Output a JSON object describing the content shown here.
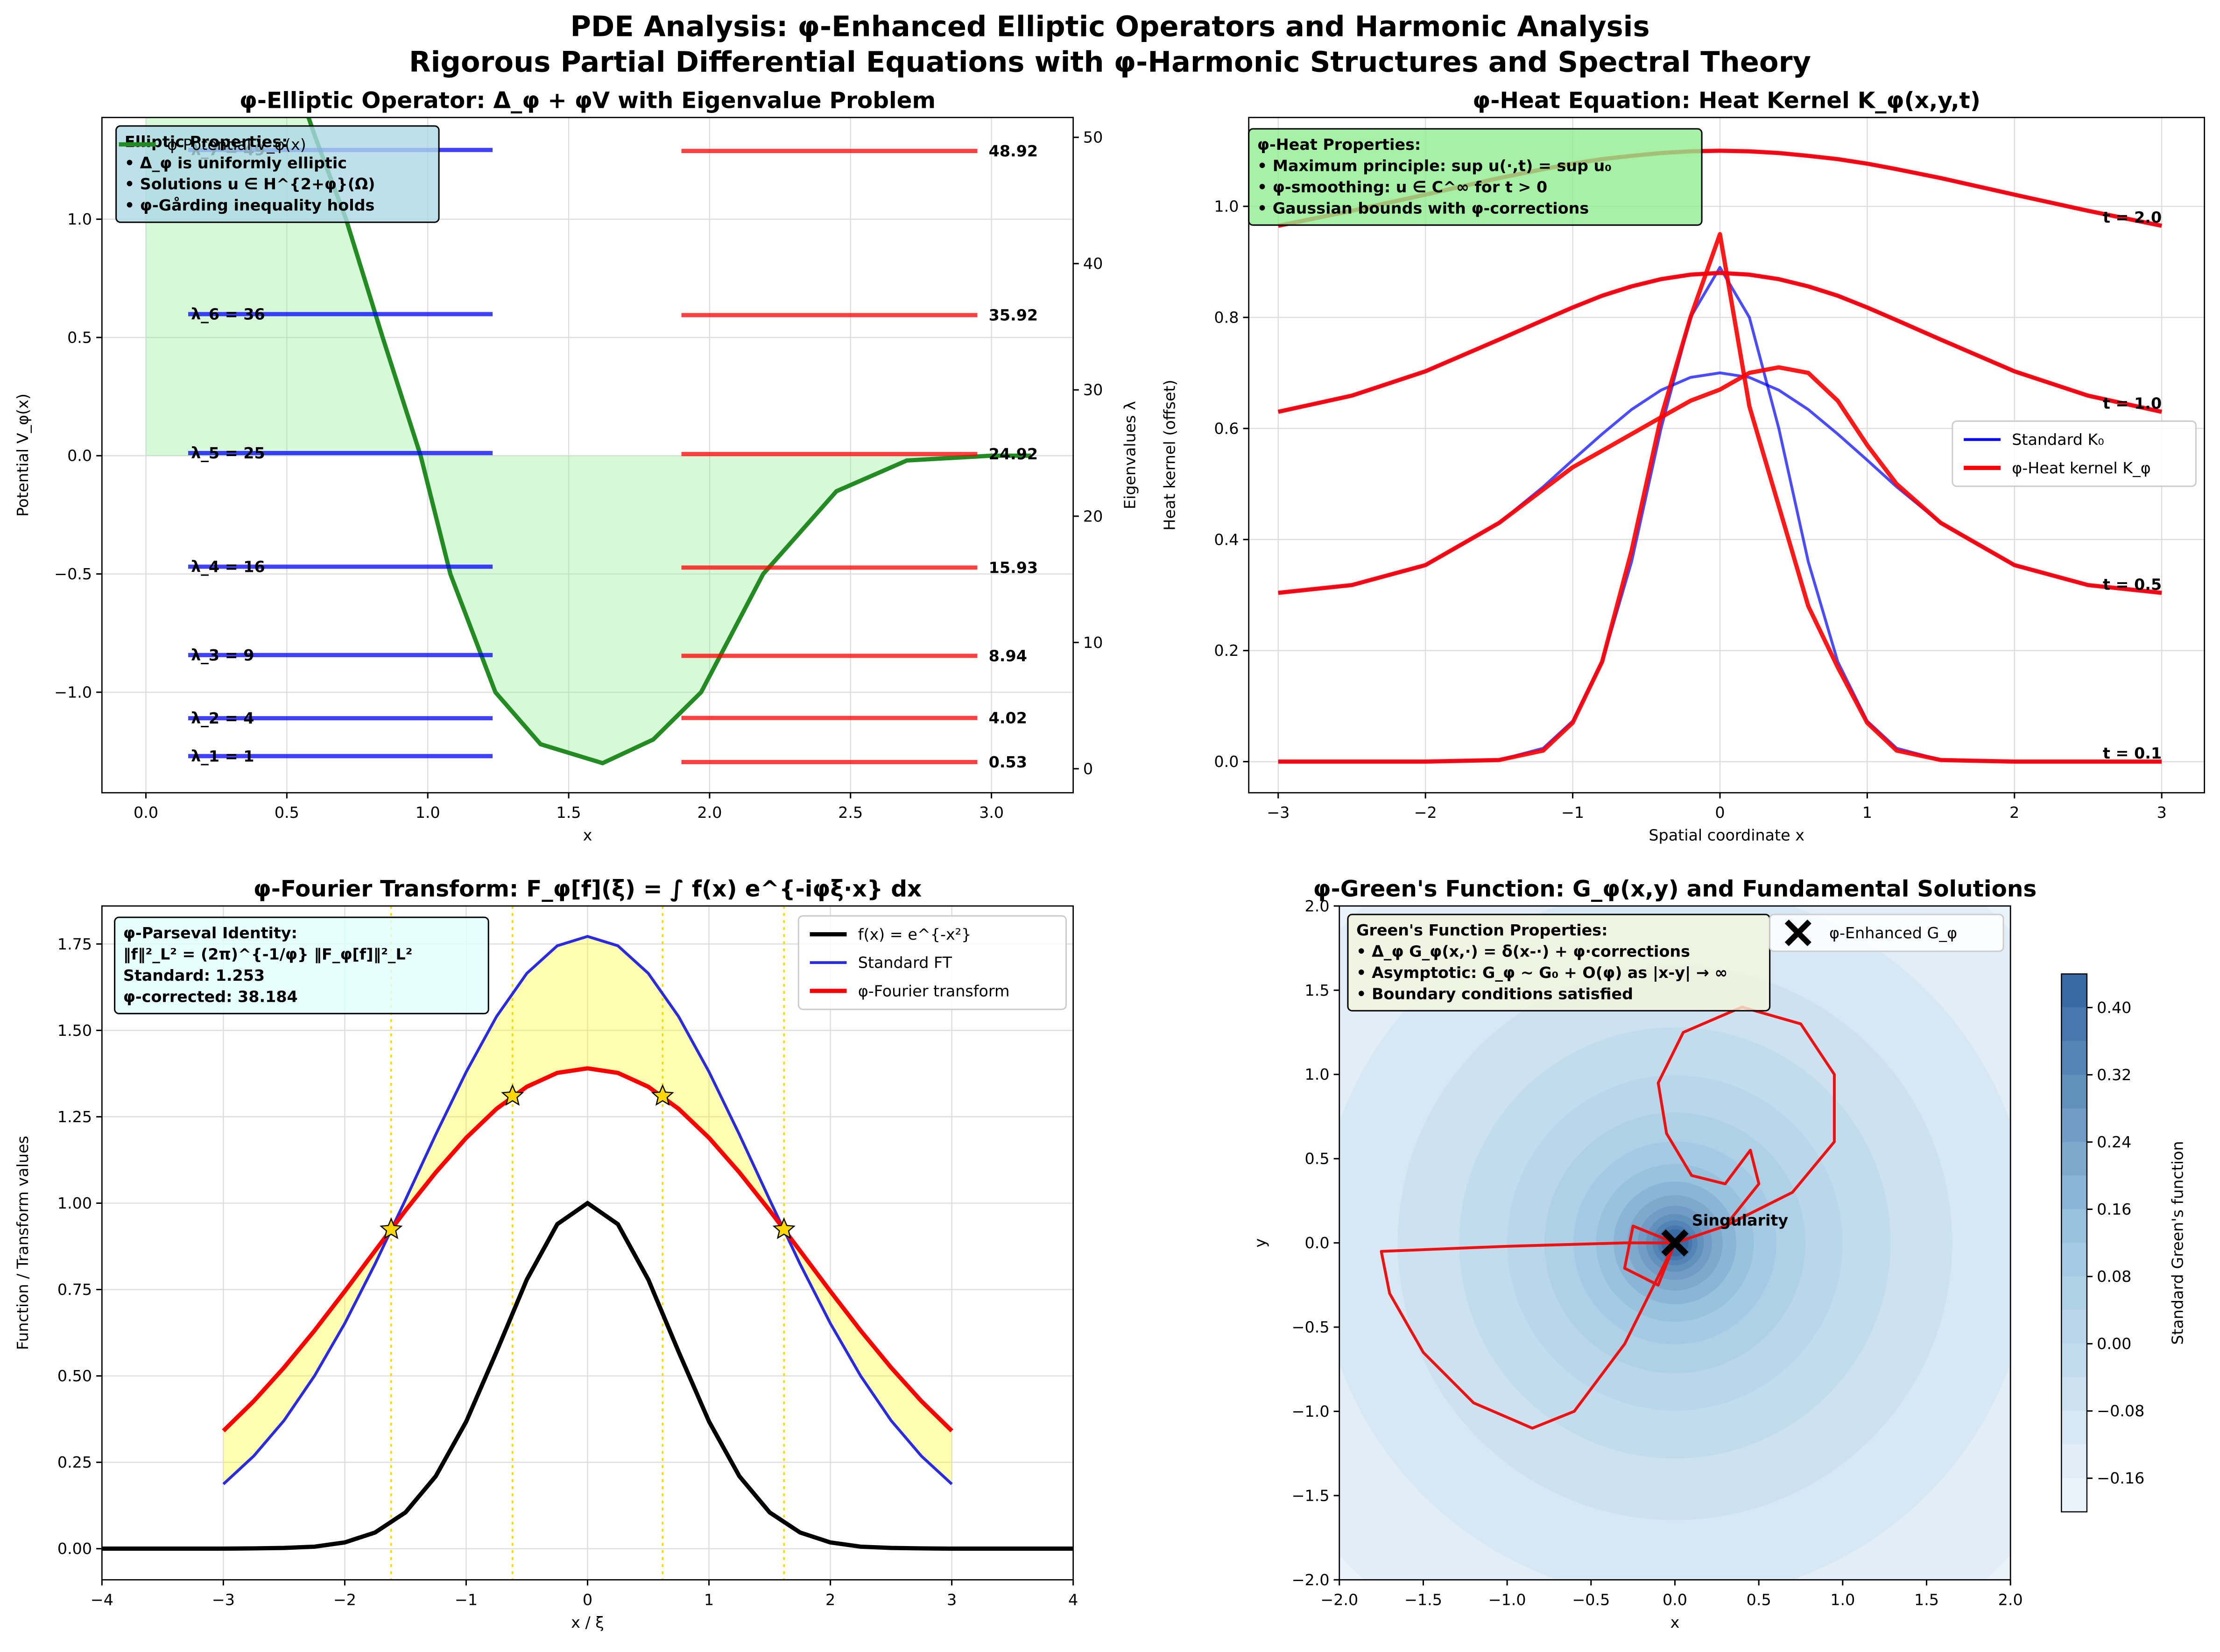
{
  "title": "PDE Analysis: φ-Enhanced Elliptic Operators and Harmonic Analysis",
  "subtitle": "Rigorous Partial Differential Equations with φ-Harmonic Structures and Spectral Theory",
  "chart_data": [
    {
      "type": "line",
      "title": "φ-Elliptic Operator: Δ_φ + φV with Eigenvalue Problem",
      "xlabel": "x",
      "ylabel": "Potential V_φ(x)",
      "y2label": "Eigenvalues λ",
      "xlim": [
        -0.156,
        3.29
      ],
      "xticks": [
        {
          "value": 0,
          "label": "0.0"
        },
        0.5,
        {
          "value": 1,
          "label": "1.0"
        },
        1.5,
        {
          "value": 2,
          "label": "2.0"
        },
        2.5,
        {
          "value": 3,
          "label": "3.0"
        }
      ],
      "ylim": [
        -1.425,
        1.43
      ],
      "yticks": [
        {
          "value": -1,
          "label": "−1.0"
        },
        {
          "value": -0.5,
          "label": "−0.5"
        },
        {
          "value": 0,
          "label": "0.0"
        },
        0.5,
        {
          "value": 1,
          "label": "1.0"
        }
      ],
      "y2lim": [
        -1.9,
        51.57
      ],
      "y2ticks": [
        0,
        10,
        20,
        30,
        40,
        50
      ],
      "grid": true,
      "x": [
        0,
        0.25,
        0.5,
        0.6,
        0.71,
        0.84,
        0.975,
        1.08,
        1.24,
        1.4,
        1.62,
        1.8,
        1.97,
        2.19,
        2.45,
        2.7,
        3.0,
        3.14
      ],
      "series": [
        {
          "name": "φ-Potential V_φ(x)",
          "color": "#228b22",
          "fill": "#90ee90",
          "values": [
            3.0,
            2.5,
            1.7,
            1.35,
            1.0,
            0.5,
            0,
            -0.5,
            -1.0,
            -1.22,
            -1.3,
            -1.2,
            -1.0,
            -0.5,
            -0.15,
            -0.02,
            0,
            0
          ]
        }
      ],
      "eigen_standard": {
        "color": "#0000ff",
        "xspan": [
          0.15,
          1.23
        ],
        "axis": "y2",
        "values": [
          1,
          4,
          9,
          16,
          25,
          36,
          49
        ],
        "labels": [
          "λ_1 = 1",
          "λ_2 = 4",
          "λ_3 = 9",
          "λ_4 = 16",
          "λ_5 = 25",
          "λ_6 = 36",
          "λ_7 = 49"
        ]
      },
      "eigen_phi": {
        "color": "#ff0000",
        "xspan": [
          1.9,
          2.95
        ],
        "axis": "y2",
        "values": [
          0.53,
          4.02,
          8.94,
          15.93,
          24.92,
          35.92,
          48.92
        ]
      },
      "legend_loc": "upper left",
      "annotation": {
        "color": "#add8e6",
        "lines": [
          "Elliptic Properties:",
          "• Δ_φ is uniformly elliptic",
          "• Solutions u ∈ H^{2+φ}(Ω)",
          "• φ-Gårding inequality holds"
        ]
      }
    },
    {
      "type": "heat",
      "title": "φ-Heat Equation: Heat Kernel K_φ(x,y,t)",
      "xlabel": "Spatial coordinate x",
      "ylabel": "Heat kernel (offset)",
      "xlim": [
        -3.2,
        3.29
      ],
      "xticks": [
        {
          "value": -3,
          "label": "−3"
        },
        {
          "value": -2,
          "label": "−2"
        },
        {
          "value": -1,
          "label": "−1"
        },
        0,
        1,
        2,
        3
      ],
      "ylim": [
        -0.056,
        1.16
      ],
      "yticks": [
        {
          "value": 0,
          "label": "0.0"
        },
        0.2,
        0.4,
        0.6,
        0.8,
        {
          "value": 1,
          "label": "1.0"
        }
      ],
      "grid": true,
      "x": [
        -3,
        -2.5,
        -2,
        -1.5,
        -1.2,
        -1,
        -0.8,
        -0.6,
        -0.4,
        -0.2,
        0,
        0.2,
        0.4,
        0.6,
        0.8,
        1,
        1.2,
        1.5,
        2,
        2.5,
        3
      ],
      "time_labels": [
        "t = 0.1",
        "t = 0.5",
        "t = 1.0",
        "t = 2.0"
      ],
      "series": [
        {
          "name": "Standard K₀",
          "color": "#0000ff",
          "curves": [
            [
              0,
              0,
              0,
              0.003,
              0.024,
              0.073,
              0.18,
              0.36,
              0.6,
              0.8,
              0.89,
              0.8,
              0.6,
              0.36,
              0.18,
              0.073,
              0.024,
              0.003,
              0,
              0,
              0
            ],
            [
              0.304,
              0.318,
              0.354,
              0.43,
              0.495,
              0.543,
              0.59,
              0.634,
              0.669,
              0.692,
              0.7,
              0.692,
              0.669,
              0.634,
              0.59,
              0.543,
              0.495,
              0.43,
              0.354,
              0.318,
              0.304
            ],
            [
              0.63,
              0.659,
              0.703,
              0.76,
              0.795,
              0.818,
              0.839,
              0.856,
              0.869,
              0.877,
              0.88,
              0.877,
              0.869,
              0.856,
              0.839,
              0.818,
              0.795,
              0.76,
              0.703,
              0.659,
              0.63
            ],
            [
              0.965,
              0.992,
              1.021,
              1.051,
              1.067,
              1.077,
              1.085,
              1.091,
              1.096,
              1.099,
              1.1,
              1.099,
              1.096,
              1.091,
              1.085,
              1.077,
              1.067,
              1.051,
              1.021,
              0.992,
              0.965
            ]
          ]
        },
        {
          "name": "φ-Heat kernel K_φ",
          "color": "#ff0000",
          "curves": [
            [
              0,
              0,
              0,
              0.003,
              0.02,
              0.07,
              0.18,
              0.38,
              0.62,
              0.8,
              0.95,
              0.64,
              0.46,
              0.28,
              0.17,
              0.07,
              0.02,
              0.003,
              0,
              0,
              0
            ],
            [
              0.304,
              0.318,
              0.354,
              0.43,
              0.49,
              0.53,
              0.56,
              0.59,
              0.62,
              0.65,
              0.67,
              0.7,
              0.71,
              0.7,
              0.65,
              0.57,
              0.5,
              0.43,
              0.354,
              0.318,
              0.304
            ],
            [
              0.63,
              0.659,
              0.703,
              0.76,
              0.795,
              0.818,
              0.839,
              0.856,
              0.869,
              0.877,
              0.88,
              0.877,
              0.869,
              0.856,
              0.839,
              0.818,
              0.795,
              0.76,
              0.703,
              0.659,
              0.63
            ],
            [
              0.965,
              0.992,
              1.021,
              1.051,
              1.067,
              1.077,
              1.085,
              1.091,
              1.096,
              1.099,
              1.1,
              1.099,
              1.096,
              1.091,
              1.085,
              1.077,
              1.067,
              1.051,
              1.021,
              0.992,
              0.965
            ]
          ]
        }
      ],
      "legend_loc": "center right",
      "annotation": {
        "color": "#90ee90",
        "lines": [
          "φ-Heat Properties:",
          "• Maximum principle: sup u(·,t) = sup u₀",
          "• φ-smoothing: u ∈ C^∞ for t > 0",
          "• Gaussian bounds with φ-corrections"
        ]
      }
    },
    {
      "type": "fourier",
      "title": "φ-Fourier Transform: F_φ[f](ξ) = ∫ f(x) e^{-iφξ·x} dx",
      "xlabel": "x / ξ",
      "ylabel": "Function / Transform values",
      "xlim": [
        -4,
        4
      ],
      "xticks": [
        {
          "value": -4,
          "label": "−4"
        },
        {
          "value": -3,
          "label": "−3"
        },
        {
          "value": -2,
          "label": "−2"
        },
        {
          "value": -1,
          "label": "−1"
        },
        0,
        1,
        2,
        3,
        4
      ],
      "ylim": [
        -0.09,
        1.86
      ],
      "yticks": [
        {
          "value": 0,
          "label": "0.00"
        },
        {
          "value": 0.25,
          "label": "0.25"
        },
        {
          "value": 0.5,
          "label": "0.50"
        },
        {
          "value": 0.75,
          "label": "0.75"
        },
        {
          "value": 1,
          "label": "1.00"
        },
        {
          "value": 1.25,
          "label": "1.25"
        },
        {
          "value": 1.5,
          "label": "1.50"
        },
        {
          "value": 1.75,
          "label": "1.75"
        }
      ],
      "grid": true,
      "series": [
        {
          "name": "f(x) = e^{-x²}",
          "color": "#000000",
          "x": [
            -4,
            -3.75,
            -3.5,
            -3.25,
            -3,
            -2.75,
            -2.5,
            -2.25,
            -2,
            -1.75,
            -1.5,
            -1.25,
            -1,
            -0.75,
            -0.5,
            -0.25,
            0,
            0.25,
            0.5,
            0.75,
            1,
            1.25,
            1.5,
            1.75,
            2,
            2.25,
            2.5,
            2.75,
            3,
            3.25,
            3.5,
            3.75,
            4
          ],
          "values": [
            0,
            0,
            0,
            0,
            0,
            0.001,
            0.002,
            0.006,
            0.018,
            0.047,
            0.105,
            0.21,
            0.368,
            0.57,
            0.779,
            0.939,
            1,
            0.939,
            0.779,
            0.57,
            0.368,
            0.21,
            0.105,
            0.047,
            0.018,
            0.006,
            0.002,
            0.001,
            0,
            0,
            0,
            0,
            0
          ]
        },
        {
          "name": "Standard FT",
          "color": "#2a2ae0",
          "x": [
            -3,
            -2.75,
            -2.5,
            -2.25,
            -2,
            -1.75,
            -1.5,
            -1.25,
            -1,
            -0.75,
            -0.5,
            -0.25,
            0,
            0.25,
            0.5,
            0.75,
            1,
            1.25,
            1.5,
            1.75,
            2,
            2.25,
            2.5,
            2.75,
            3
          ],
          "values": [
            0.187,
            0.268,
            0.371,
            0.5,
            0.652,
            0.824,
            1.01,
            1.199,
            1.38,
            1.54,
            1.665,
            1.745,
            1.772,
            1.745,
            1.665,
            1.54,
            1.38,
            1.199,
            1.01,
            0.824,
            0.652,
            0.5,
            0.371,
            0.268,
            0.187
          ]
        },
        {
          "name": "φ-Fourier transform",
          "color": "#ff0000",
          "x": [
            -3,
            -2.75,
            -2.5,
            -2.25,
            -2,
            -1.75,
            -1.5,
            -1.25,
            -1,
            -0.75,
            -0.5,
            -0.25,
            0,
            0.25,
            0.5,
            0.75,
            1,
            1.25,
            1.5,
            1.75,
            2,
            2.25,
            2.5,
            2.75,
            3
          ],
          "values": [
            0.341,
            0.427,
            0.524,
            0.631,
            0.745,
            0.862,
            0.979,
            1.089,
            1.189,
            1.273,
            1.337,
            1.377,
            1.39,
            1.377,
            1.337,
            1.273,
            1.189,
            1.089,
            0.979,
            0.862,
            0.745,
            0.631,
            0.524,
            0.427,
            0.341
          ]
        }
      ],
      "fill_color": "#ffff00",
      "markers": {
        "color": "#ffd700",
        "x": [
          -1.618,
          -0.618,
          0.618,
          1.618
        ],
        "values": [
          0.924,
          1.31,
          1.31,
          0.924
        ]
      },
      "legend_loc": "upper right",
      "annotation": {
        "color": "#e0ffff",
        "lines": [
          "φ-Parseval Identity:",
          "‖f‖²_L² = (2π)^{-1/φ} ‖F_φ[f]‖²_L²",
          "Standard: 1.253",
          "φ-corrected: 38.184"
        ]
      }
    },
    {
      "type": "contour",
      "title": "φ-Green's Function: G_φ(x,y) and Fundamental Solutions",
      "xlabel": "x",
      "ylabel": "y",
      "xlim": [
        -2,
        2
      ],
      "ylim": [
        -2,
        2
      ],
      "xticks": [
        {
          "value": -2,
          "label": "−2.0"
        },
        {
          "value": -1.5,
          "label": "−1.5"
        },
        {
          "value": -1,
          "label": "−1.0"
        },
        {
          "value": -0.5,
          "label": "−0.5"
        },
        {
          "value": 0,
          "label": "0.0"
        },
        0.5,
        {
          "value": 1,
          "label": "1.0"
        },
        1.5,
        {
          "value": 2,
          "label": "2.0"
        }
      ],
      "yticks": [
        {
          "value": -2,
          "label": "−2.0"
        },
        {
          "value": -1.5,
          "label": "−1.5"
        },
        {
          "value": -1,
          "label": "−1.0"
        },
        {
          "value": -0.5,
          "label": "−0.5"
        },
        {
          "value": 0,
          "label": "0.0"
        },
        0.5,
        {
          "value": 1,
          "label": "1.0"
        },
        1.5,
        {
          "value": 2,
          "label": "2.0"
        }
      ],
      "grid": false,
      "levels": [
        -0.2,
        -0.16,
        -0.12,
        -0.08,
        -0.04,
        0,
        0.04,
        0.08,
        0.12,
        0.16,
        0.2,
        0.24,
        0.28,
        0.32,
        0.36,
        0.4,
        0.44
      ],
      "colorbar_label": "Standard Green's function",
      "colorbar_ticks": [
        {
          "value": -0.16,
          "label": "−0.16"
        },
        {
          "value": -0.08,
          "label": "−0.08"
        },
        {
          "value": 0,
          "label": "0.00"
        },
        0.08,
        0.16,
        0.24,
        0.32,
        {
          "value": 0.4,
          "label": "0.40"
        }
      ],
      "curve": {
        "name": "φ-Enhanced G_φ",
        "color": "#ee1111",
        "x": [
          0,
          -0.1,
          -0.3,
          -0.6,
          -0.85,
          -1.2,
          -1.5,
          -1.7,
          -1.75,
          -1.0,
          -0.3,
          0,
          0.3,
          0.7,
          0.95,
          0.95,
          0.75,
          0.4,
          0.05,
          -0.1,
          -0.05,
          0.1,
          0.3,
          0.45,
          0.5,
          0.3,
          0,
          -0.25,
          -0.3,
          -0.1,
          0
        ],
        "y": [
          0,
          -0.2,
          -0.6,
          -1.0,
          -1.1,
          -0.95,
          -0.65,
          -0.3,
          -0.05,
          -0.02,
          0,
          0,
          0.1,
          0.3,
          0.6,
          1.0,
          1.3,
          1.4,
          1.25,
          0.95,
          0.65,
          0.4,
          0.35,
          0.55,
          0.35,
          0.1,
          0,
          0.1,
          -0.15,
          -0.25,
          0
        ]
      },
      "singularity": {
        "x": 0,
        "y": 0,
        "label": "Singularity"
      },
      "legend_loc": "upper right",
      "annotation": {
        "color": "#f5f5dc",
        "lines": [
          "Green's Function Properties:",
          "• Δ_φ G_φ(x,·) = δ(x-·) + φ·corrections",
          "• Asymptotic: G_φ ~ G₀ + O(φ) as |x-y| → ∞",
          "• Boundary conditions satisfied"
        ]
      }
    }
  ]
}
